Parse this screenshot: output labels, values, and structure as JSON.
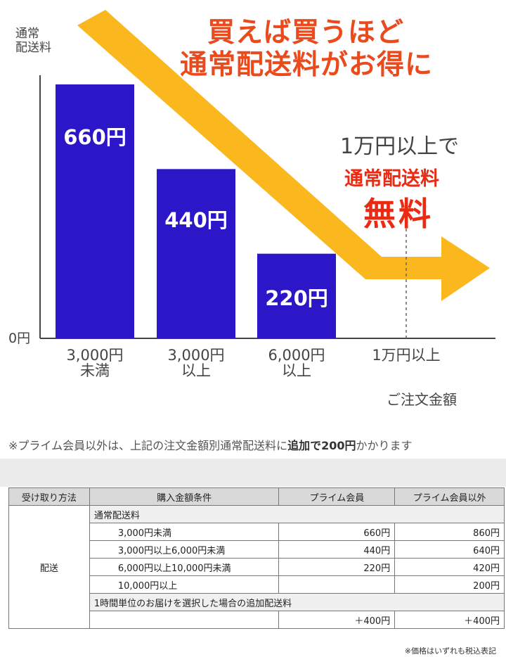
{
  "headline": {
    "line1": "買えば買うほど",
    "line2": "通常配送料がお得に"
  },
  "free_callout": {
    "line1": "1万円以上で",
    "line2": "通常配送料",
    "line3": "無料"
  },
  "chart_data": {
    "type": "bar",
    "ylabel": "通常\n配送料",
    "y_zero_label": "0円",
    "xlabel": "ご注文金額",
    "categories": [
      "3,000円\n未満",
      "3,000円\n以上",
      "6,000円\n以上",
      "1万円以上"
    ],
    "values": [
      660,
      440,
      220,
      0
    ],
    "value_labels": [
      "660円",
      "440円",
      "220円",
      ""
    ],
    "ylim": [
      0,
      700
    ],
    "bar_color": "#2b16c8",
    "arrow_color": "#fbb81e"
  },
  "note": {
    "prefix": "※プライム会員以外は、上記の注文金額別通常配送料に",
    "bold": "追加で200円",
    "suffix": "かかります"
  },
  "table": {
    "headers": [
      "受け取り方法",
      "購入金額条件",
      "プライム会員",
      "プライム会員以外"
    ],
    "method": "配送",
    "group1": "通常配送料",
    "rows": [
      {
        "condition": "3,000円未満",
        "prime": "660円",
        "nonprime": "860円"
      },
      {
        "condition": "3,000円以上6,000円未満",
        "prime": "440円",
        "nonprime": "640円"
      },
      {
        "condition": "6,000円以上10,000円未満",
        "prime": "220円",
        "nonprime": "420円"
      },
      {
        "condition": "10,000円以上",
        "prime": "",
        "nonprime": "200円"
      }
    ],
    "group2": "1時間単位のお届けを選択した場合の追加配送料",
    "extra_row": {
      "condition": "",
      "prime": "＋400円",
      "nonprime": "＋400円"
    }
  },
  "price_note": "※価格はいずれも税込表記"
}
